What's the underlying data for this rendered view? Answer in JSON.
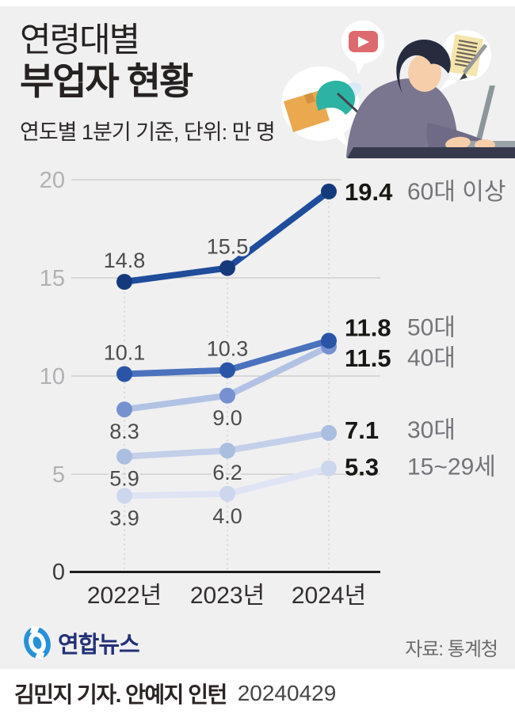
{
  "header": {
    "title_line1": "연령대별",
    "title_line2": "부업자 현황",
    "subtitle": "연도별 1분기 기준, 단위: 만 명"
  },
  "illustration": {
    "icons": [
      "youtube-icon",
      "package-box-icon",
      "cap-icon",
      "document-icon",
      "pencil-icon",
      "worker-at-laptop-icon"
    ]
  },
  "chart_data": {
    "type": "line",
    "title": "연령대별 부업자 현황",
    "xlabel": "",
    "ylabel": "",
    "unit": "만 명",
    "categories": [
      "2022년",
      "2023년",
      "2024년"
    ],
    "y_ticks": [
      0,
      5,
      10,
      15,
      20
    ],
    "ylim": [
      0,
      20
    ],
    "grid": true,
    "legend_position": "right-of-last-point",
    "series": [
      {
        "name": "60대 이상",
        "values": [
          14.8,
          15.5,
          19.4
        ],
        "line_color": "#1f4d9c",
        "dot_color": "#153a7c",
        "label_position": "above",
        "end_dy": 0
      },
      {
        "name": "50대",
        "values": [
          10.1,
          10.3,
          11.8
        ],
        "line_color": "#4a72bd",
        "dot_color": "#2a55a7",
        "label_position": "above",
        "end_dy": -17
      },
      {
        "name": "40대",
        "values": [
          8.3,
          9.0,
          11.5
        ],
        "line_color": "#b1c2e4",
        "dot_color": "#7591cf",
        "label_position": "below",
        "end_dy": 14
      },
      {
        "name": "30대",
        "values": [
          5.9,
          6.2,
          7.1
        ],
        "line_color": "#c4cfe9",
        "dot_color": "#aabedf",
        "label_position": "below",
        "end_dy": -4
      },
      {
        "name": "15~29세",
        "values": [
          3.9,
          4.0,
          5.3
        ],
        "line_color": "#dee4f3",
        "dot_color": "#ccd7ee",
        "label_position": "below",
        "end_dy": -2
      }
    ],
    "colors": {
      "background": "#f0f0f1",
      "gridline": "#c9c9c9",
      "axis": "#1d1d1d",
      "tick_label": "#b1b1b3",
      "zero_label": "#3c3c3c",
      "x_label": "#332e2e",
      "point_label": "#4c4c4c",
      "end_value": "#171714",
      "end_name": "#757378"
    }
  },
  "footer": {
    "logo_text": "연합뉴스",
    "source": "자료: 통계청",
    "credit": "김민지 기자. 안예지 인턴",
    "date": "20240429"
  }
}
